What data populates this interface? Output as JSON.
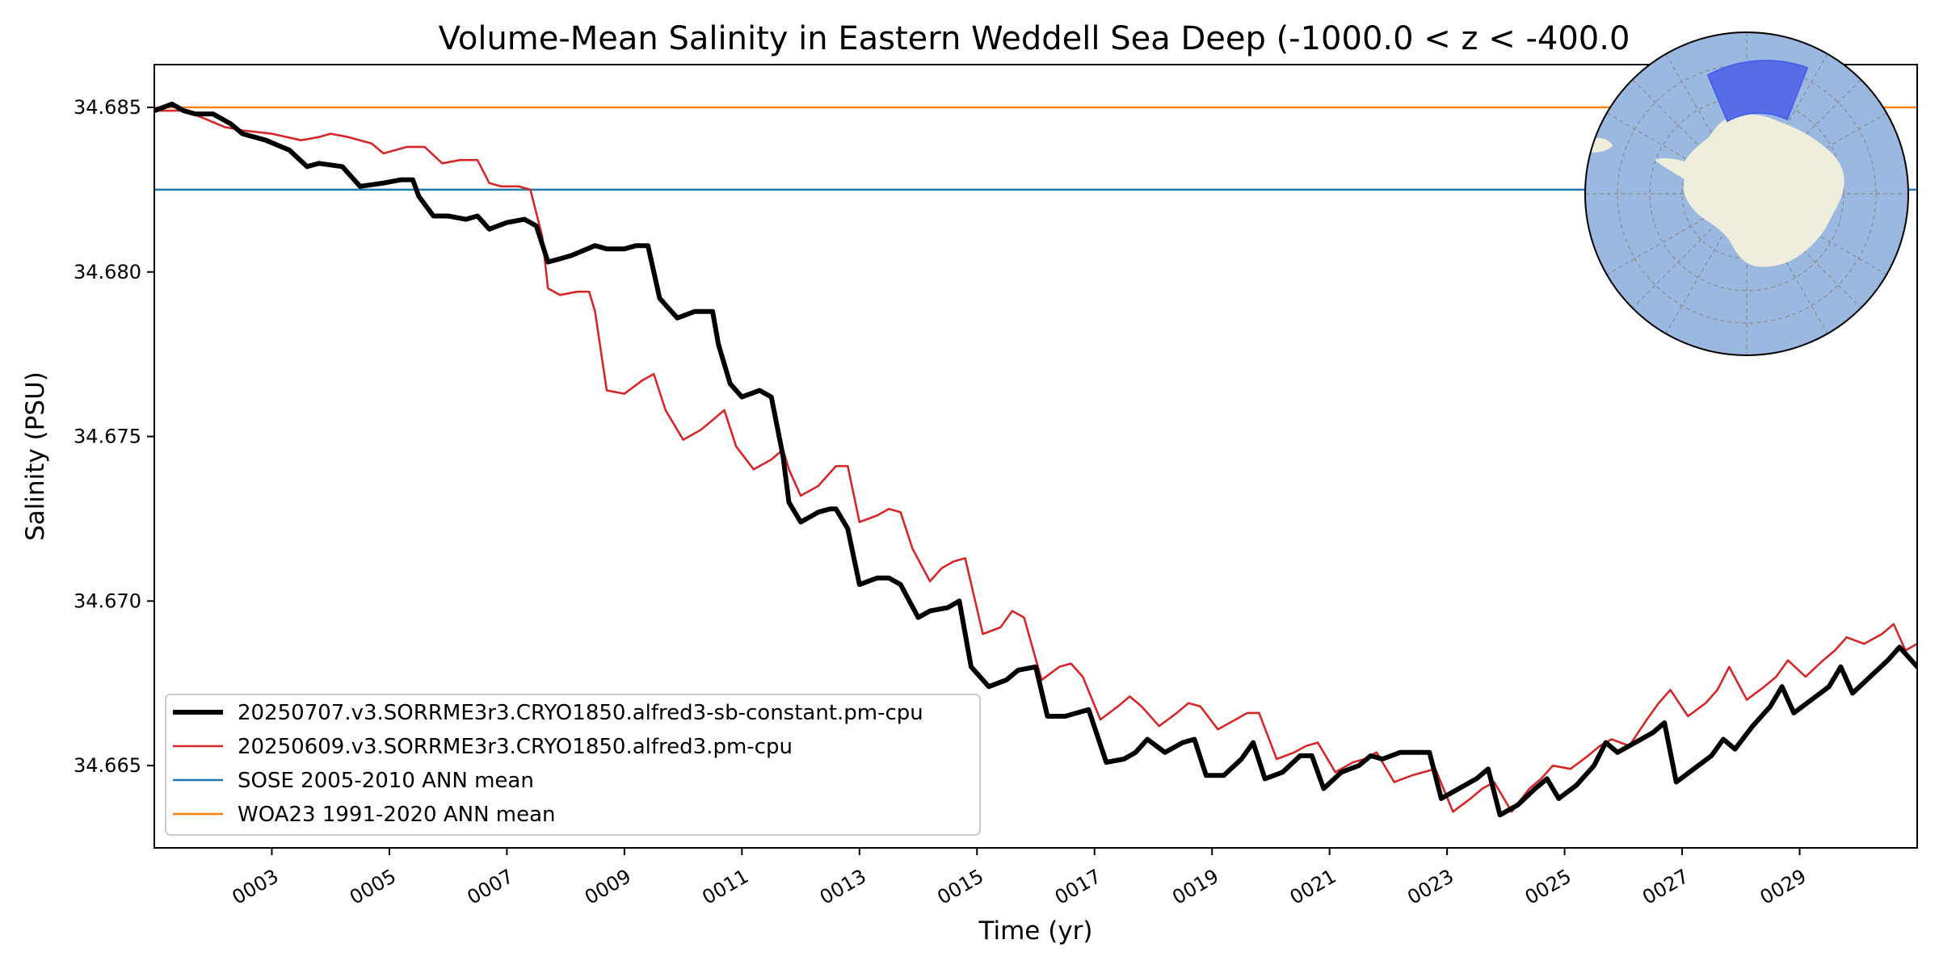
{
  "chart_data": {
    "type": "line",
    "title": "Volume-Mean Salinity in Eastern Weddell Sea Deep (-1000.0 < z < -400.0",
    "xlabel": "Time (yr)",
    "ylabel": "Salinity (PSU)",
    "xlim": [
      1.0,
      31.0
    ],
    "ylim": [
      34.6625,
      34.6863
    ],
    "x_ticks": [
      3,
      5,
      7,
      9,
      11,
      13,
      15,
      17,
      19,
      21,
      23,
      25,
      27,
      29
    ],
    "x_tick_labels": [
      "0003",
      "0005",
      "0007",
      "0009",
      "0011",
      "0013",
      "0015",
      "0017",
      "0019",
      "0021",
      "0023",
      "0025",
      "0027",
      "0029"
    ],
    "y_ticks": [
      34.665,
      34.67,
      34.675,
      34.68,
      34.685
    ],
    "y_tick_labels": [
      "34.665",
      "34.670",
      "34.675",
      "34.680",
      "34.685"
    ],
    "grid": false,
    "legend_position": "lower-left",
    "series": [
      {
        "name": "20250707.v3.SORRME3r3.CRYO1850.alfred3-sb-constant.pm-cpu",
        "color": "#000000",
        "x": [
          1.0,
          1.3,
          1.5,
          1.7,
          2.0,
          2.3,
          2.5,
          2.9,
          3.3,
          3.6,
          3.8,
          4.2,
          4.5,
          4.9,
          5.2,
          5.4,
          5.5,
          5.75,
          6.0,
          6.3,
          6.5,
          6.7,
          7.0,
          7.3,
          7.5,
          7.7,
          7.9,
          8.1,
          8.5,
          8.7,
          9.0,
          9.2,
          9.4,
          9.6,
          9.9,
          10.2,
          10.5,
          10.6,
          10.8,
          11.0,
          11.3,
          11.5,
          11.7,
          11.8,
          12.0,
          12.3,
          12.5,
          12.6,
          12.8,
          13.0,
          13.3,
          13.5,
          13.7,
          14.0,
          14.2,
          14.5,
          14.7,
          14.9,
          15.2,
          15.5,
          15.7,
          16.0,
          16.2,
          16.5,
          16.7,
          16.9,
          17.2,
          17.5,
          17.7,
          17.9,
          18.2,
          18.5,
          18.7,
          18.9,
          19.2,
          19.5,
          19.7,
          19.9,
          20.2,
          20.5,
          20.7,
          20.9,
          21.2,
          21.5,
          21.7,
          21.9,
          22.2,
          22.5,
          22.7,
          22.9,
          23.2,
          23.5,
          23.7,
          23.9,
          24.2,
          24.5,
          24.7,
          24.9,
          25.2,
          25.5,
          25.7,
          25.9,
          26.2,
          26.5,
          26.7,
          26.9,
          27.2,
          27.5,
          27.7,
          27.9,
          28.2,
          28.5,
          28.7,
          28.9,
          29.2,
          29.5,
          29.7,
          29.9,
          30.2,
          30.5,
          30.7,
          31.0
        ],
        "y": [
          34.6849,
          34.6851,
          34.6849,
          34.6848,
          34.6848,
          34.6845,
          34.6842,
          34.684,
          34.6837,
          34.6832,
          34.6833,
          34.6832,
          34.6826,
          34.6827,
          34.6828,
          34.6828,
          34.6823,
          34.6817,
          34.6817,
          34.6816,
          34.6817,
          34.6813,
          34.6815,
          34.6816,
          34.6814,
          34.6803,
          34.6804,
          34.6805,
          34.6808,
          34.6807,
          34.6807,
          34.6808,
          34.6808,
          34.6792,
          34.6786,
          34.6788,
          34.6788,
          34.6778,
          34.6766,
          34.6762,
          34.6764,
          34.6762,
          34.6744,
          34.673,
          34.6724,
          34.6727,
          34.6728,
          34.6728,
          34.6722,
          34.6705,
          34.6707,
          34.6707,
          34.6705,
          34.6695,
          34.6697,
          34.6698,
          34.67,
          34.668,
          34.6674,
          34.6676,
          34.6679,
          34.668,
          34.6665,
          34.6665,
          34.6666,
          34.6667,
          34.6651,
          34.6652,
          34.6654,
          34.6658,
          34.6654,
          34.6657,
          34.6658,
          34.6647,
          34.6647,
          34.6652,
          34.6657,
          34.6646,
          34.6648,
          34.6653,
          34.6653,
          34.6643,
          34.6648,
          34.665,
          34.6653,
          34.6652,
          34.6654,
          34.6654,
          34.6654,
          34.664,
          34.6643,
          34.6646,
          34.6649,
          34.6635,
          34.6638,
          34.6643,
          34.6646,
          34.664,
          34.6644,
          34.665,
          34.6657,
          34.6654,
          34.6657,
          34.666,
          34.6663,
          34.6645,
          34.6649,
          34.6653,
          34.6658,
          34.6655,
          34.6662,
          34.6668,
          34.6674,
          34.6666,
          34.667,
          34.6674,
          34.668,
          34.6672,
          34.6677,
          34.6682,
          34.6686,
          34.668
        ]
      },
      {
        "name": "20250609.v3.SORRME3r3.CRYO1850.alfred3.pm-cpu",
        "color": "#d62728",
        "x": [
          1.0,
          1.5,
          1.8,
          2.2,
          2.5,
          3.0,
          3.5,
          3.8,
          4.0,
          4.3,
          4.7,
          4.9,
          5.3,
          5.6,
          5.9,
          6.2,
          6.5,
          6.7,
          6.9,
          7.2,
          7.4,
          7.6,
          7.7,
          7.9,
          8.2,
          8.4,
          8.5,
          8.7,
          9.0,
          9.3,
          9.5,
          9.7,
          10.0,
          10.3,
          10.5,
          10.7,
          10.9,
          11.2,
          11.5,
          11.7,
          11.8,
          12.0,
          12.3,
          12.6,
          12.8,
          13.0,
          13.3,
          13.5,
          13.7,
          13.9,
          14.2,
          14.4,
          14.6,
          14.8,
          15.1,
          15.4,
          15.6,
          15.8,
          16.1,
          16.4,
          16.6,
          16.8,
          17.1,
          17.4,
          17.6,
          17.8,
          18.1,
          18.4,
          18.6,
          18.8,
          19.1,
          19.4,
          19.6,
          19.8,
          20.1,
          20.4,
          20.6,
          20.8,
          21.1,
          21.4,
          21.6,
          21.8,
          22.1,
          22.4,
          22.6,
          22.8,
          23.1,
          23.4,
          23.6,
          23.8,
          24.1,
          24.4,
          24.6,
          24.8,
          25.1,
          25.4,
          25.6,
          25.8,
          26.1,
          26.4,
          26.6,
          26.8,
          27.1,
          27.4,
          27.6,
          27.8,
          28.1,
          28.4,
          28.6,
          28.8,
          29.1,
          29.4,
          29.6,
          29.8,
          30.1,
          30.4,
          30.6,
          30.8,
          31.0
        ],
        "y": [
          34.6849,
          34.6849,
          34.6847,
          34.6844,
          34.6843,
          34.6842,
          34.684,
          34.6841,
          34.6842,
          34.6841,
          34.6839,
          34.6836,
          34.6838,
          34.6838,
          34.6833,
          34.6834,
          34.6834,
          34.6827,
          34.6826,
          34.6826,
          34.6825,
          34.6811,
          34.6795,
          34.6793,
          34.6794,
          34.6794,
          34.6788,
          34.6764,
          34.6763,
          34.6767,
          34.6769,
          34.6758,
          34.6749,
          34.6752,
          34.6755,
          34.6758,
          34.6747,
          34.674,
          34.6743,
          34.6746,
          34.674,
          34.6732,
          34.6735,
          34.6741,
          34.6741,
          34.6724,
          34.6726,
          34.6728,
          34.6727,
          34.6716,
          34.6706,
          34.671,
          34.6712,
          34.6713,
          34.669,
          34.6692,
          34.6697,
          34.6695,
          34.6676,
          34.668,
          34.6681,
          34.6677,
          34.6664,
          34.6668,
          34.6671,
          34.6668,
          34.6662,
          34.6666,
          34.6669,
          34.6668,
          34.6661,
          34.6664,
          34.6666,
          34.6666,
          34.6652,
          34.6654,
          34.6656,
          34.6657,
          34.6648,
          34.6651,
          34.6652,
          34.6654,
          34.6645,
          34.6647,
          34.6648,
          34.6649,
          34.6636,
          34.664,
          34.6643,
          34.6645,
          34.6636,
          34.6643,
          34.6646,
          34.665,
          34.6649,
          34.6653,
          34.6656,
          34.6658,
          34.6656,
          34.6664,
          34.6669,
          34.6673,
          34.6665,
          34.6669,
          34.6673,
          34.668,
          34.667,
          34.6674,
          34.6677,
          34.6682,
          34.6677,
          34.6682,
          34.6685,
          34.6689,
          34.6687,
          34.669,
          34.6693,
          34.6685,
          34.6687
        ]
      },
      {
        "name": "SOSE 2005-2010 ANN mean",
        "color": "#1f77b4",
        "constant": 34.6825
      },
      {
        "name": "WOA23 1991-2020 ANN mean",
        "color": "#ff7f0e",
        "constant": 34.685
      }
    ],
    "inset_map": {
      "ocean_color": "#9ab8e0",
      "land_color": "#efeedd",
      "region_color": "#4a5fe8"
    }
  }
}
